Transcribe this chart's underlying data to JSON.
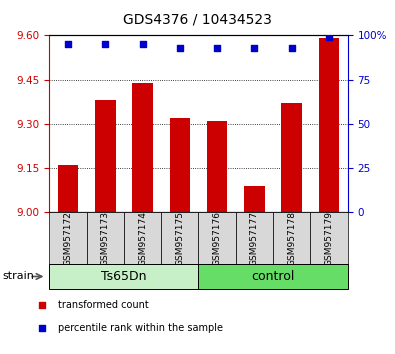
{
  "title": "GDS4376 / 10434523",
  "samples": [
    "GSM957172",
    "GSM957173",
    "GSM957174",
    "GSM957175",
    "GSM957176",
    "GSM957177",
    "GSM957178",
    "GSM957179"
  ],
  "red_values": [
    9.16,
    9.38,
    9.44,
    9.32,
    9.31,
    9.09,
    9.37,
    9.59
  ],
  "blue_values": [
    95,
    95,
    95,
    93,
    93,
    93,
    93,
    99
  ],
  "ylim_left": [
    9.0,
    9.6
  ],
  "ylim_right": [
    0,
    100
  ],
  "yticks_left": [
    9.0,
    9.15,
    9.3,
    9.45,
    9.6
  ],
  "yticks_right": [
    0,
    25,
    50,
    75,
    100
  ],
  "groups": [
    {
      "label": "Ts65Dn",
      "start": 0,
      "end": 3,
      "color": "#c8f0c8"
    },
    {
      "label": "control",
      "start": 4,
      "end": 7,
      "color": "#66dd66"
    }
  ],
  "group_label": "strain",
  "bar_color": "#cc0000",
  "dot_color": "#0000cc",
  "bar_width": 0.55,
  "grid_linestyle": "dotted",
  "legend_items": [
    {
      "label": "transformed count",
      "color": "#cc0000"
    },
    {
      "label": "percentile rank within the sample",
      "color": "#0000cc"
    }
  ],
  "tick_color_left": "#cc0000",
  "tick_color_right": "#0000cc",
  "tick_fontsize": 7.5,
  "title_fontsize": 10,
  "sample_fontsize": 6.5,
  "group_fontsize": 9,
  "legend_fontsize": 7,
  "strain_fontsize": 8
}
